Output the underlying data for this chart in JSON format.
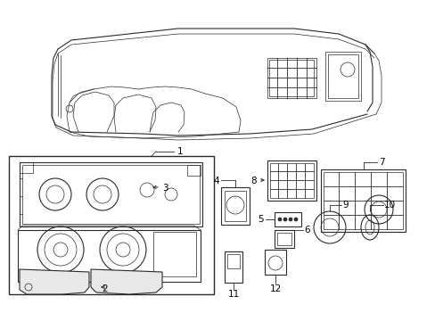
{
  "background_color": "#ffffff",
  "line_color": "#2a2a2a",
  "label_color": "#000000",
  "fig_width": 4.89,
  "fig_height": 3.6,
  "dpi": 100
}
